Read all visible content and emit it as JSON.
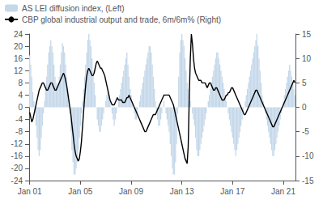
{
  "chart_data": {
    "type": "bar",
    "categories": [
      "Jan 01",
      null,
      null,
      null,
      null,
      null,
      null,
      null,
      null,
      null,
      null,
      null,
      null,
      null,
      null,
      null,
      null,
      null,
      null,
      null,
      null,
      null,
      null,
      null,
      null,
      null,
      null,
      null,
      null,
      null,
      null,
      null,
      null,
      null,
      null,
      null,
      null,
      null,
      null,
      null,
      null,
      null,
      null,
      null,
      null,
      null,
      null,
      null,
      "Jan 05",
      null,
      null,
      null,
      null,
      null,
      null,
      null,
      null,
      null,
      null,
      null,
      null,
      null,
      null,
      null,
      null,
      null,
      null,
      null,
      null,
      null,
      null,
      null,
      null,
      null,
      null,
      null,
      null,
      null,
      null,
      null,
      null,
      null,
      null,
      null,
      null,
      null,
      null,
      null,
      null,
      null,
      null,
      null,
      null,
      null,
      null,
      null,
      "Jan 09",
      null,
      null,
      null,
      null,
      null,
      null,
      null,
      null,
      null,
      null,
      null,
      null,
      null,
      null,
      null,
      null,
      null,
      null,
      null,
      null,
      null,
      null,
      null,
      null,
      null,
      null,
      null,
      null,
      null,
      null,
      null,
      null,
      null,
      null,
      null,
      null,
      null,
      null,
      null,
      null,
      null,
      null,
      null,
      null,
      null,
      null,
      null,
      "Jan 13",
      null,
      null,
      null,
      null,
      null,
      null,
      null,
      null,
      null,
      null,
      null,
      null,
      null,
      null,
      null,
      null,
      null,
      null,
      null,
      null,
      null,
      null,
      null,
      null,
      null,
      null,
      null,
      null,
      null,
      null,
      null,
      null,
      null,
      null,
      null,
      null,
      null,
      null,
      null,
      null,
      null,
      null,
      null,
      null,
      null,
      null,
      null,
      "Jan 17",
      null,
      null,
      null,
      null,
      null,
      null,
      null,
      null,
      null,
      null,
      null,
      null,
      null,
      null,
      null,
      null,
      null,
      null,
      null,
      null,
      null,
      null,
      null,
      null,
      null,
      null,
      null,
      null,
      null,
      null,
      null,
      null,
      null,
      null,
      null,
      null,
      null,
      null,
      null,
      null,
      null,
      null,
      null,
      null,
      null,
      null,
      null,
      "Jan 21",
      null,
      null,
      null,
      null,
      null,
      null,
      null,
      null,
      null,
      null,
      null
    ],
    "series": [
      {
        "name": "AS LEI diffusion index, (Left)",
        "type": "bar",
        "color": "#c5d8ea",
        "values": [
          17,
          14,
          10,
          5,
          2,
          -2,
          -6,
          -10,
          -14,
          -16,
          -14,
          -10,
          -6,
          -2,
          2,
          6,
          10,
          14,
          18,
          20,
          22,
          20,
          18,
          14,
          10,
          8,
          6,
          8,
          10,
          14,
          18,
          21,
          20,
          18,
          14,
          10,
          6,
          2,
          -2,
          -8,
          -14,
          -18,
          -22,
          -22,
          -20,
          -18,
          -14,
          -10,
          -6,
          -2,
          2,
          6,
          10,
          14,
          18,
          22,
          24,
          22,
          20,
          16,
          12,
          8,
          4,
          0,
          -4,
          -6,
          -8,
          -8,
          -6,
          -4,
          -2,
          0,
          2,
          4,
          6,
          4,
          2,
          0,
          -2,
          -4,
          -6,
          -4,
          -2,
          0,
          2,
          4,
          6,
          8,
          10,
          12,
          14,
          16,
          18,
          14,
          10,
          6,
          4,
          2,
          0,
          -2,
          -4,
          -4,
          -2,
          0,
          2,
          4,
          6,
          8,
          10,
          12,
          14,
          16,
          18,
          20,
          20,
          18,
          14,
          10,
          6,
          2,
          -2,
          -4,
          -6,
          -6,
          -4,
          -2,
          0,
          2,
          0,
          -2,
          -4,
          -6,
          -8,
          -12,
          -16,
          -20,
          -22,
          -22,
          -18,
          -12,
          -2,
          10,
          18,
          22,
          24,
          22,
          20,
          16,
          12,
          8,
          6,
          4,
          2,
          0,
          -2,
          -4,
          -6,
          -10,
          -14,
          -16,
          -16,
          -14,
          -12,
          -10,
          -8,
          -6,
          -4,
          -2,
          0,
          2,
          4,
          6,
          8,
          10,
          12,
          14,
          16,
          18,
          18,
          16,
          14,
          12,
          10,
          8,
          6,
          4,
          2,
          0,
          -2,
          -4,
          -6,
          -8,
          -10,
          -12,
          -14,
          -16,
          -14,
          -12,
          -10,
          -8,
          -6,
          -4,
          -2,
          0,
          2,
          4,
          6,
          8,
          10,
          12,
          14,
          16,
          18,
          20,
          22,
          24,
          20,
          16,
          12,
          8,
          4,
          2,
          0,
          -2,
          -4,
          -6,
          -8,
          -10,
          -12,
          -14,
          -16,
          -16,
          -14,
          -12,
          -10,
          -8,
          -6,
          -4,
          -2,
          0,
          2,
          4,
          6,
          8,
          10,
          12,
          14,
          12,
          10,
          8,
          6,
          4
        ]
      },
      {
        "name": "CBP global industrial output and trade, 6m/6m% (Right)",
        "type": "line",
        "color": "#000000",
        "axis": "y2",
        "values": [
          -1.0,
          -2.0,
          -3.0,
          -2.5,
          -1.5,
          -0.5,
          0.5,
          1.5,
          2.5,
          3.5,
          4.0,
          4.5,
          5.0,
          5.0,
          4.5,
          4.0,
          3.5,
          3.5,
          4.0,
          4.5,
          5.0,
          5.0,
          4.5,
          4.0,
          3.5,
          3.5,
          4.0,
          4.5,
          5.0,
          5.5,
          6.0,
          6.5,
          7.0,
          6.5,
          5.5,
          4.5,
          3.0,
          1.5,
          0.0,
          -1.5,
          -3.5,
          -5.5,
          -7.5,
          -9.0,
          -10.0,
          -10.5,
          -11.0,
          -10.5,
          -9.0,
          -7.0,
          -4.0,
          -1.0,
          2.0,
          4.5,
          6.5,
          7.5,
          8.0,
          7.5,
          7.0,
          6.5,
          6.5,
          7.0,
          8.0,
          9.0,
          9.5,
          9.0,
          8.5,
          8.0,
          8.0,
          7.5,
          7.0,
          6.5,
          5.5,
          4.5,
          3.5,
          2.5,
          1.5,
          1.0,
          0.5,
          0.5,
          0.5,
          1.0,
          1.5,
          2.0,
          1.5,
          1.5,
          1.5,
          1.5,
          1.0,
          1.0,
          1.0,
          1.5,
          2.0,
          2.0,
          2.5,
          2.0,
          1.5,
          1.0,
          0.5,
          0.0,
          -0.5,
          -1.0,
          -1.5,
          -2.0,
          -2.5,
          -3.0,
          -3.5,
          -4.0,
          -4.5,
          -5.0,
          -5.0,
          -4.5,
          -4.0,
          -3.5,
          -3.0,
          -2.5,
          -2.0,
          -1.5,
          -1.5,
          -1.5,
          -1.0,
          -0.5,
          0.0,
          0.5,
          1.0,
          1.5,
          2.0,
          2.5,
          2.5,
          2.5,
          2.5,
          2.5,
          2.5,
          2.0,
          1.5,
          1.0,
          0.5,
          -0.5,
          -1.5,
          -2.5,
          -3.5,
          -4.5,
          -5.5,
          -6.5,
          -7.5,
          -8.5,
          -9.5,
          -10.5,
          -11.0,
          -11.5,
          -8.0,
          2.0,
          10.0,
          15.0,
          13.0,
          10.0,
          8.0,
          7.0,
          6.5,
          6.0,
          5.5,
          5.5,
          5.5,
          5.0,
          5.0,
          5.0,
          5.0,
          4.5,
          4.0,
          4.5,
          5.0,
          5.0,
          4.5,
          4.0,
          3.5,
          3.5,
          4.0,
          4.0,
          3.5,
          3.0,
          2.5,
          2.0,
          1.5,
          1.5,
          1.5,
          2.0,
          2.5,
          2.5,
          3.0,
          3.0,
          3.5,
          4.0,
          4.0,
          3.5,
          3.0,
          2.5,
          2.0,
          1.5,
          1.0,
          0.5,
          0.0,
          -0.5,
          -1.0,
          -1.5,
          -1.5,
          -1.0,
          -0.5,
          0.0,
          0.5,
          1.0,
          1.5,
          2.0,
          2.5,
          3.0,
          3.5,
          3.5,
          3.0,
          2.5,
          2.0,
          1.5,
          1.0,
          0.5,
          0.0,
          -0.5,
          -1.0,
          -1.5,
          -2.0,
          -2.5,
          -3.0,
          -3.5,
          -4.0,
          -4.0,
          -3.5,
          -3.0,
          -2.5,
          -2.0,
          -1.5,
          -1.0,
          -0.5,
          0.0,
          0.5,
          1.0,
          1.5,
          2.0,
          2.5,
          3.0,
          3.5,
          4.0,
          4.5,
          5.0,
          5.5,
          5.0
        ]
      }
    ],
    "ylim": [
      -24,
      24
    ],
    "yticks": [
      -24,
      -20,
      -16,
      -12,
      -8,
      -4,
      0,
      4,
      8,
      12,
      16,
      20,
      24
    ],
    "y2lim": [
      -15,
      15
    ],
    "y2ticks": [
      -15,
      -10,
      -5,
      0,
      5,
      10,
      15
    ],
    "grid": false,
    "legend": "upper left"
  }
}
